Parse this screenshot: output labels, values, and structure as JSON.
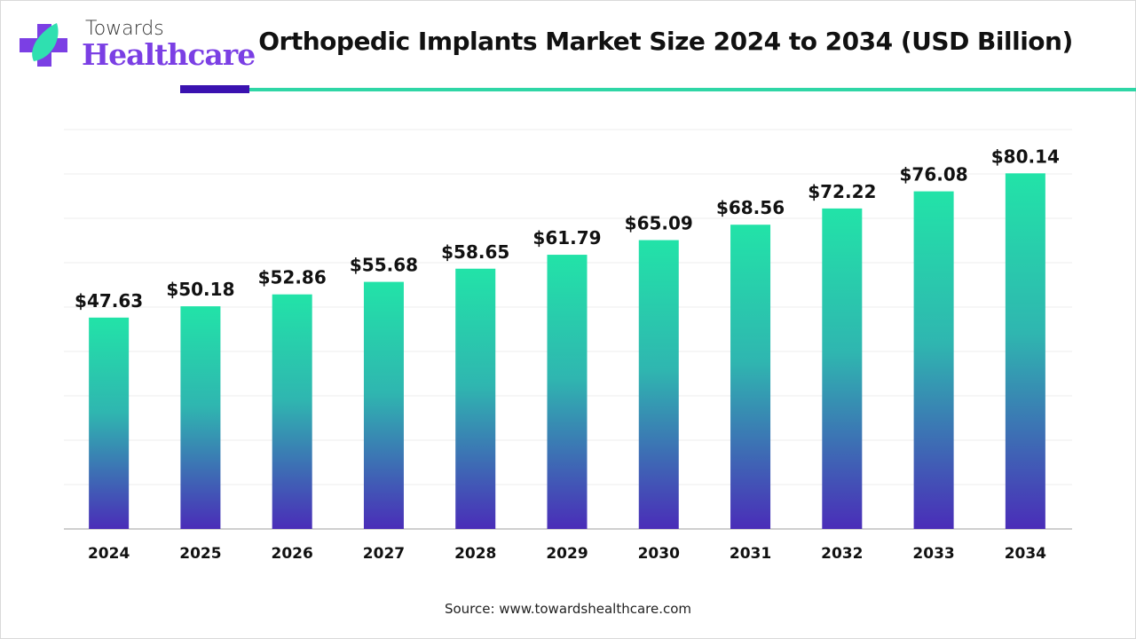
{
  "brand": {
    "line1": "Towards",
    "line2": "Healthcare"
  },
  "title": "Orthopedic Implants Market Size 2024 to 2034 (USD Billion)",
  "source": "Source: www.towardshealthcare.com",
  "colors": {
    "bar_top": "#22e3a8",
    "bar_bottom": "#4a2db8",
    "accent_dark": "#3a12b0",
    "accent_teal": "#2fd6a6",
    "brand_purple": "#7b3fe4"
  },
  "chart_data": {
    "type": "bar",
    "title": "Orthopedic Implants Market Size 2024 to 2034 (USD Billion)",
    "categories": [
      "2024",
      "2025",
      "2026",
      "2027",
      "2028",
      "2029",
      "2030",
      "2031",
      "2032",
      "2033",
      "2034"
    ],
    "values": [
      47.63,
      50.18,
      52.86,
      55.68,
      58.65,
      61.79,
      65.09,
      68.56,
      72.22,
      76.08,
      80.14
    ],
    "data_labels": [
      "$47.63",
      "$50.18",
      "$52.86",
      "$55.68",
      "$58.65",
      "$61.79",
      "$65.09",
      "$68.56",
      "$72.22",
      "$76.08",
      "$80.14"
    ],
    "xlabel": "",
    "ylabel": "",
    "ylim": [
      0,
      90
    ],
    "grid": true,
    "grid_step": 10,
    "legend": "none"
  }
}
